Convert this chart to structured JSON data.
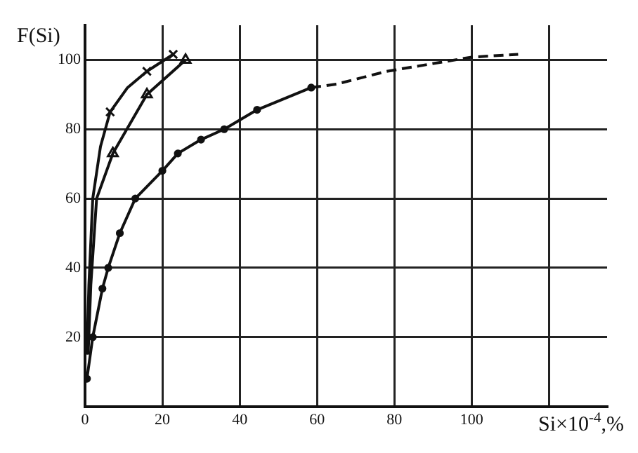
{
  "chart_data": {
    "type": "line",
    "xlabel": "Si×10$^{-4}$,%",
    "ylabel": "F(Si)",
    "xlim": [
      0,
      135
    ],
    "ylim": [
      0,
      110
    ],
    "xticks": [
      0,
      20,
      40,
      60,
      80,
      100,
      {
        "value": 120,
        "label": null
      }
    ],
    "yticks": [
      {
        "value": 0,
        "label": null
      },
      20,
      40,
      60,
      80,
      100
    ],
    "grid": true,
    "series": [
      {
        "color": "#111111",
        "marker": "none",
        "line_style": "solid",
        "x": [
          0.5,
          1,
          2,
          4,
          6.5,
          11,
          16,
          22.8
        ],
        "values": [
          15,
          35,
          60,
          75,
          85,
          92,
          96.7,
          101.6
        ]
      },
      {
        "type": "scatter",
        "color": "#111111",
        "marker": "cross",
        "x": [
          6.5,
          16,
          22.8
        ],
        "values": [
          85,
          96.7,
          101.6
        ]
      },
      {
        "color": "#111111",
        "marker": "none",
        "line_style": "solid",
        "x": [
          0.8,
          1.5,
          3,
          7.2,
          16,
          26
        ],
        "values": [
          15,
          35,
          60,
          73,
          90,
          100
        ]
      },
      {
        "type": "scatter",
        "color": "#111111",
        "marker": "triangle",
        "x": [
          7.2,
          16,
          26
        ],
        "values": [
          73,
          90,
          100
        ]
      },
      {
        "color": "#111111",
        "marker": "circle",
        "line_style": "solid",
        "x": [
          0.5,
          2,
          4.5,
          6,
          9,
          13,
          20,
          24,
          30,
          36,
          44.5,
          58.5
        ],
        "values": [
          8,
          20,
          34,
          40,
          50,
          60,
          68,
          73,
          77,
          80,
          85.6,
          92
        ]
      },
      {
        "color": "#111111",
        "marker": "none",
        "line_style": "dashed",
        "x": [
          58.5,
          65,
          78,
          100,
          112
        ],
        "values": [
          92,
          93,
          96.7,
          100.8,
          101.6
        ]
      }
    ]
  }
}
